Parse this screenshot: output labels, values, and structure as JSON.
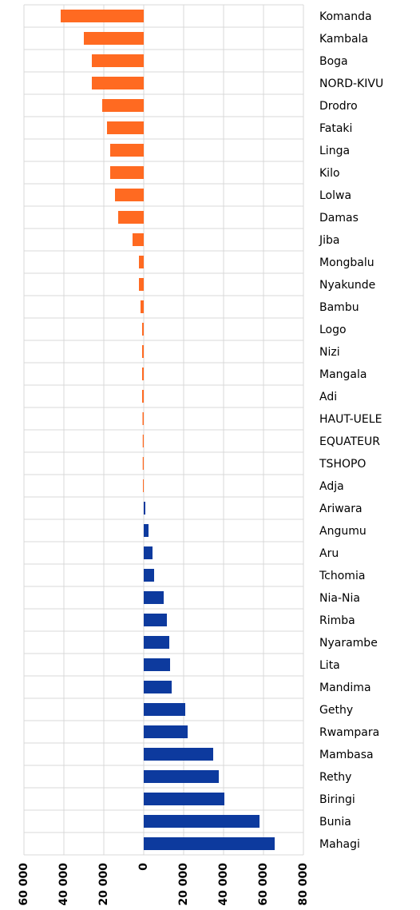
{
  "chart_data": {
    "type": "hbar",
    "categories": [
      "Komanda",
      "Kambala",
      "Boga",
      "NORD-KIVU",
      "Drodro",
      "Fataki",
      "Linga",
      "Kilo",
      "Lolwa",
      "Damas",
      "Jiba",
      "Mongbalu",
      "Nyakunde",
      "Bambu",
      "Logo",
      "Nizi",
      "Mangala",
      "Adi",
      "HAUT-UELE",
      "EQUATEUR",
      "TSHOPO",
      "Adja",
      "Ariwara",
      "Angumu",
      "Aru",
      "Tchomia",
      "Nia-Nia",
      "Rimba",
      "Nyarambe",
      "Lita",
      "Mandima",
      "Gethy",
      "Rwampara",
      "Mambasa",
      "Rethy",
      "Biringi",
      "Bunia",
      "Mahagi"
    ],
    "values": [
      -41600,
      -30000,
      -26000,
      -26000,
      -20800,
      -18400,
      -16800,
      -16800,
      -14400,
      -12800,
      -5600,
      -2400,
      -2400,
      -1600,
      -800,
      -800,
      -800,
      -800,
      -600,
      -500,
      -500,
      -400,
      800,
      2400,
      4400,
      5200,
      10000,
      11600,
      12800,
      13200,
      14000,
      20800,
      22000,
      34800,
      37600,
      40400,
      58000,
      65600
    ],
    "color_negative": "#ff6a21",
    "color_positive": "#0d3a9e",
    "xlim": [
      -60000,
      80000
    ],
    "xticks": [
      {
        "value": -60000,
        "label": "60 000"
      },
      {
        "value": -40000,
        "label": "40 000"
      },
      {
        "value": -20000,
        "label": "20 000"
      },
      0,
      {
        "value": 20000,
        "label": "20 000"
      },
      {
        "value": 40000,
        "label": "40 000"
      },
      {
        "value": 60000,
        "label": "60 000"
      },
      {
        "value": 80000,
        "label": "80 000"
      }
    ],
    "grid": true
  }
}
